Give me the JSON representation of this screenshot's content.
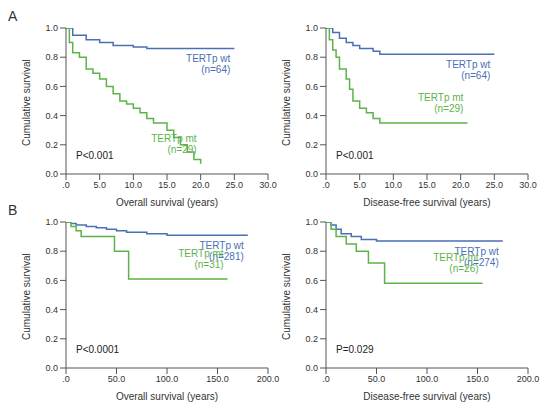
{
  "chart_data": [
    {
      "type": "line",
      "panel": "A",
      "line_style": "step",
      "annotation": "P<0.001",
      "xlabel": "Overall survival (years)",
      "ylabel": "Cumulative survival",
      "xlim": [
        0,
        30
      ],
      "xticks": [
        {
          "value": 0,
          "label": ".0"
        },
        {
          "value": 5,
          "label": "5.0"
        },
        {
          "value": 10,
          "label": "10.0"
        },
        {
          "value": 15,
          "label": "15.0"
        },
        {
          "value": 20,
          "label": "20.0"
        },
        {
          "value": 25,
          "label": "25.0"
        },
        {
          "value": 30,
          "label": "30.0"
        }
      ],
      "ylim": [
        0,
        1
      ],
      "yticks": [
        {
          "value": 0,
          "label": "0.0"
        },
        0.2,
        0.4,
        0.6,
        0.8,
        {
          "value": 1,
          "label": "1.0"
        }
      ],
      "series": [
        {
          "name": "TERTp wt",
          "note": "(n=64)",
          "color": "#4a6fb5",
          "x": [
            0,
            1,
            3,
            5,
            7,
            10,
            12,
            25
          ],
          "values": [
            1.0,
            0.95,
            0.92,
            0.9,
            0.88,
            0.87,
            0.86,
            0.86
          ]
        },
        {
          "name": "TERTp mt",
          "note": "(n=29)",
          "color": "#5cb34a",
          "x": [
            0,
            0.5,
            1,
            2,
            3,
            4,
            5,
            6,
            7,
            8,
            9,
            10,
            11,
            12,
            13,
            15,
            16,
            17,
            18,
            19,
            20
          ],
          "values": [
            1.0,
            0.9,
            0.83,
            0.8,
            0.72,
            0.69,
            0.65,
            0.6,
            0.55,
            0.5,
            0.48,
            0.45,
            0.42,
            0.38,
            0.35,
            0.3,
            0.25,
            0.2,
            0.15,
            0.1,
            0.07
          ]
        }
      ]
    },
    {
      "type": "line",
      "line_style": "step",
      "annotation": "P<0.001",
      "xlabel": "Disease-free survival (years)",
      "ylabel": "Cumulative survival",
      "xlim": [
        0,
        30
      ],
      "xticks": [
        {
          "value": 0,
          "label": ".0"
        },
        {
          "value": 5,
          "label": "5.0"
        },
        {
          "value": 10,
          "label": "10.0"
        },
        {
          "value": 15,
          "label": "15.0"
        },
        {
          "value": 20,
          "label": "20.0"
        },
        {
          "value": 25,
          "label": "25.0"
        },
        {
          "value": 30,
          "label": "30.0"
        }
      ],
      "ylim": [
        0,
        1
      ],
      "yticks": [
        {
          "value": 0,
          "label": "0.0"
        },
        0.2,
        0.4,
        0.6,
        0.8,
        {
          "value": 1,
          "label": "1.0"
        }
      ],
      "series": [
        {
          "name": "TERTp wt",
          "note": "(n=64)",
          "color": "#4a6fb5",
          "x": [
            0,
            1,
            2,
            3,
            4,
            5,
            7,
            8,
            25
          ],
          "values": [
            1.0,
            0.97,
            0.93,
            0.9,
            0.88,
            0.86,
            0.84,
            0.82,
            0.82
          ]
        },
        {
          "name": "TERTp mt",
          "note": "(n=29)",
          "color": "#5cb34a",
          "x": [
            0,
            0.5,
            1,
            1.5,
            2,
            3,
            3.5,
            4,
            5,
            6,
            7,
            8,
            21
          ],
          "values": [
            1.0,
            0.92,
            0.85,
            0.8,
            0.72,
            0.65,
            0.58,
            0.5,
            0.45,
            0.42,
            0.38,
            0.35,
            0.35
          ]
        }
      ]
    },
    {
      "type": "line",
      "panel": "B",
      "line_style": "step",
      "annotation": "P<0.0001",
      "xlabel": "Overall survival (years)",
      "ylabel": "Cumulative survival",
      "xlim": [
        0,
        200
      ],
      "xticks": [
        {
          "value": 0,
          "label": ".0"
        },
        {
          "value": 50,
          "label": "50.0"
        },
        {
          "value": 100,
          "label": "100.0"
        },
        {
          "value": 150,
          "label": "150.0"
        },
        {
          "value": 200,
          "label": "200.0"
        }
      ],
      "ylim": [
        0,
        1
      ],
      "yticks": [
        {
          "value": 0,
          "label": "0.0"
        },
        0.2,
        0.4,
        0.6,
        0.8,
        {
          "value": 1,
          "label": "1.0"
        }
      ],
      "series": [
        {
          "name": "TERTp wt",
          "note": "(n=281)",
          "color": "#4a6fb5",
          "x": [
            0,
            5,
            10,
            20,
            30,
            40,
            50,
            60,
            80,
            100,
            180
          ],
          "values": [
            1.0,
            0.99,
            0.98,
            0.97,
            0.96,
            0.95,
            0.94,
            0.93,
            0.92,
            0.91,
            0.91
          ]
        },
        {
          "name": "TERTp mt",
          "note": "(n=31)",
          "color": "#5cb34a",
          "x": [
            0,
            5,
            10,
            15,
            48,
            62,
            160
          ],
          "values": [
            1.0,
            0.97,
            0.94,
            0.9,
            0.8,
            0.61,
            0.61
          ]
        }
      ]
    },
    {
      "type": "line",
      "line_style": "step",
      "annotation": "P=0.029",
      "xlabel": "Disease-free survival (years)",
      "ylabel": "Cumulative survival",
      "xlim": [
        0,
        200
      ],
      "xticks": [
        {
          "value": 0,
          "label": ".0"
        },
        {
          "value": 50,
          "label": "50.0"
        },
        {
          "value": 100,
          "label": "100.0"
        },
        {
          "value": 150,
          "label": "150.0"
        },
        {
          "value": 200,
          "label": "200.0"
        }
      ],
      "ylim": [
        0,
        1
      ],
      "yticks": [
        {
          "value": 0,
          "label": "0.0"
        },
        0.2,
        0.4,
        0.6,
        0.8,
        {
          "value": 1,
          "label": "1.0"
        }
      ],
      "series": [
        {
          "name": "TERTp wt",
          "note": "(n=274)",
          "color": "#4a6fb5",
          "x": [
            0,
            5,
            10,
            15,
            25,
            35,
            50,
            175
          ],
          "values": [
            1.0,
            0.98,
            0.95,
            0.92,
            0.9,
            0.88,
            0.87,
            0.87
          ]
        },
        {
          "name": "TERTp mt",
          "note": "(n=26)",
          "color": "#5cb34a",
          "x": [
            0,
            5,
            10,
            20,
            30,
            42,
            58,
            155
          ],
          "values": [
            1.0,
            0.95,
            0.9,
            0.85,
            0.8,
            0.72,
            0.58,
            0.58
          ]
        }
      ]
    }
  ]
}
